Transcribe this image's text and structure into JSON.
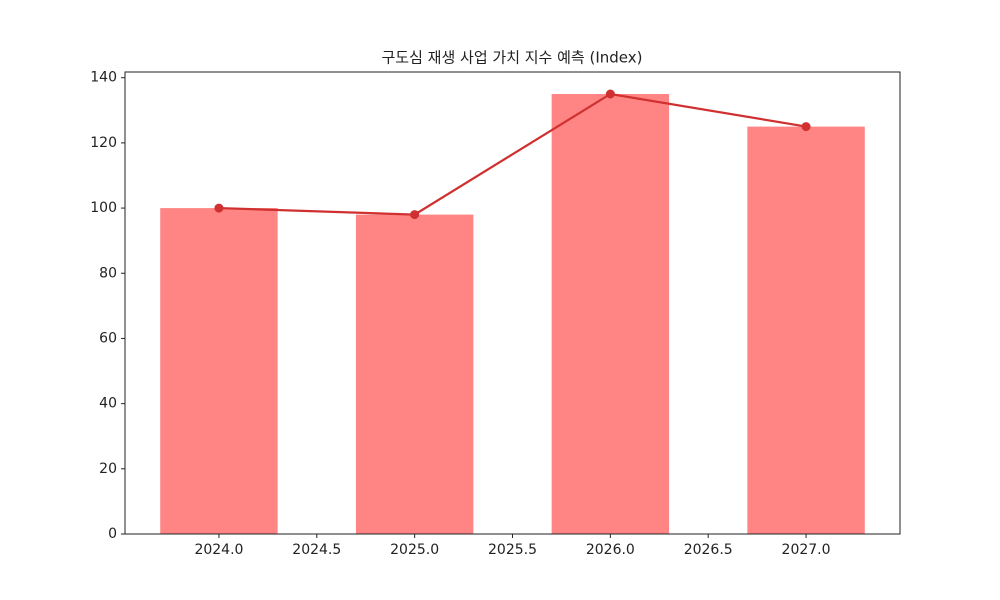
{
  "chart_data": {
    "type": "bar",
    "title": "구도심 재생 사업 가치 지수 예측 (Index)",
    "x": [
      2024,
      2025,
      2026,
      2027
    ],
    "series": [
      {
        "type": "bar",
        "color": "#ff8585",
        "values": [
          100,
          98,
          135,
          125
        ]
      },
      {
        "type": "line",
        "color": "#d03030",
        "values": [
          100,
          98,
          135,
          125
        ]
      }
    ],
    "xlim": [
      2023.52,
      2027.48
    ],
    "ylim": [
      0,
      141.75
    ],
    "xticks": [
      {
        "value": 2024,
        "label": "2024.0"
      },
      2024.5,
      {
        "value": 2025,
        "label": "2025.0"
      },
      2025.5,
      {
        "value": 2026,
        "label": "2026.0"
      },
      2026.5,
      {
        "value": 2027,
        "label": "2027.0"
      }
    ],
    "yticks": [
      0,
      20,
      40,
      60,
      80,
      100,
      120,
      140
    ]
  }
}
